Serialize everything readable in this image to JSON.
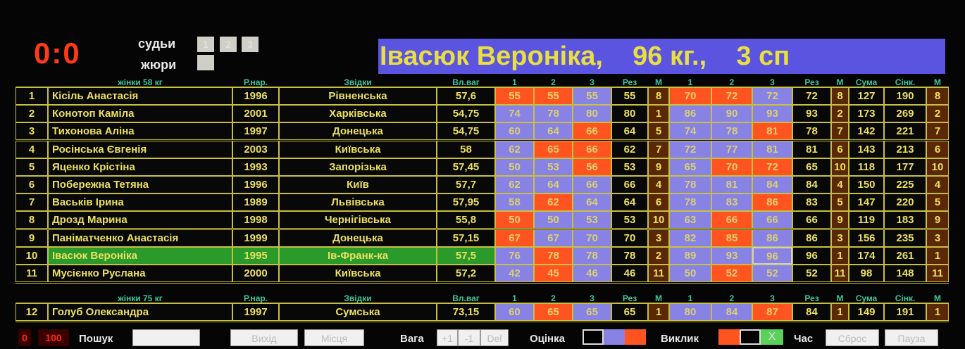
{
  "score": "0:0",
  "judges_label": "судьи",
  "judges": [
    "1",
    "2",
    "3"
  ],
  "jury_label": "жюри",
  "banner": "Івасюк Вероніка,    96 кг.,    3 сп",
  "headers": [
    "",
    "",
    "Р.нар.",
    "Звідки",
    "Вл.ваг",
    "1",
    "2",
    "3",
    "Рез",
    "М",
    "1",
    "2",
    "3",
    "Рез",
    "М",
    "Сума",
    "Сінк.",
    "М"
  ],
  "groups": [
    {
      "title": "жінки 58 кг",
      "athletes": [
        [
          "1",
          "Кісіль Анастасія",
          "1996",
          "Рівненська",
          "57,6",
          [
            "55",
            "F"
          ],
          [
            "55",
            "F"
          ],
          [
            "55",
            "G"
          ],
          "55",
          "8",
          [
            "70",
            "F"
          ],
          [
            "72",
            "F"
          ],
          [
            "72",
            "G"
          ],
          "72",
          "8",
          "127",
          "190",
          "8"
        ],
        [
          "2",
          "Конотоп Каміла",
          "2001",
          "Харківська",
          "54,75",
          [
            "74",
            "G"
          ],
          [
            "78",
            "G"
          ],
          [
            "80",
            "G"
          ],
          "80",
          "1",
          [
            "86",
            "G"
          ],
          [
            "90",
            "G"
          ],
          [
            "93",
            "G"
          ],
          "93",
          "2",
          "173",
          "269",
          "2"
        ],
        [
          "3",
          "Тихонова Аліна",
          "1997",
          "Донецька",
          "54,75",
          [
            "60",
            "G"
          ],
          [
            "64",
            "G"
          ],
          [
            "66",
            "F"
          ],
          "64",
          "5",
          [
            "74",
            "G"
          ],
          [
            "78",
            "G"
          ],
          [
            "81",
            "F"
          ],
          "78",
          "7",
          "142",
          "221",
          "7"
        ],
        [
          "4",
          "Росінська Євгенія",
          "2003",
          "Київська",
          "58",
          [
            "62",
            "G"
          ],
          [
            "65",
            "F"
          ],
          [
            "66",
            "F"
          ],
          "62",
          "7",
          [
            "72",
            "G"
          ],
          [
            "77",
            "G"
          ],
          [
            "81",
            "G"
          ],
          "81",
          "6",
          "143",
          "213",
          "6"
        ],
        [
          "5",
          "Яценко Крістіна",
          "1993",
          "Запорізька",
          "57,45",
          [
            "50",
            "G"
          ],
          [
            "53",
            "G"
          ],
          [
            "56",
            "F"
          ],
          "53",
          "9",
          [
            "65",
            "G"
          ],
          [
            "70",
            "F"
          ],
          [
            "72",
            "F"
          ],
          "65",
          "10",
          "118",
          "177",
          "10"
        ],
        [
          "6",
          "Побережна Тетяна",
          "1996",
          "Київ",
          "57,7",
          [
            "62",
            "G"
          ],
          [
            "64",
            "G"
          ],
          [
            "66",
            "G"
          ],
          "66",
          "4",
          [
            "78",
            "G"
          ],
          [
            "81",
            "G"
          ],
          [
            "84",
            "G"
          ],
          "84",
          "4",
          "150",
          "225",
          "4"
        ],
        [
          "7",
          "Васьків Ірина",
          "1989",
          "Львівська",
          "57,95",
          [
            "58",
            "G"
          ],
          [
            "62",
            "F"
          ],
          [
            "64",
            "G"
          ],
          "64",
          "6",
          [
            "78",
            "G"
          ],
          [
            "83",
            "G"
          ],
          [
            "86",
            "F"
          ],
          "83",
          "5",
          "147",
          "220",
          "5"
        ],
        [
          "8",
          "Дрозд Марина",
          "1998",
          "Чернігівська",
          "55,8",
          [
            "50",
            "F"
          ],
          [
            "50",
            "G"
          ],
          [
            "53",
            "G"
          ],
          "53",
          "10",
          [
            "63",
            "G"
          ],
          [
            "66",
            "F"
          ],
          [
            "66",
            "G"
          ],
          "66",
          "9",
          "119",
          "183",
          "9"
        ],
        [
          "9",
          "Паніматченко Анастасія",
          "1999",
          "Донецька",
          "57,15",
          [
            "67",
            "F"
          ],
          [
            "67",
            "G"
          ],
          [
            "70",
            "G"
          ],
          "70",
          "3",
          [
            "82",
            "G"
          ],
          [
            "85",
            "F"
          ],
          [
            "86",
            "G"
          ],
          "86",
          "3",
          "156",
          "235",
          "3"
        ],
        [
          "10",
          "Івасюк Вероніка",
          "1995",
          "Ів-Франк-ка",
          "57,5",
          [
            "76",
            "G"
          ],
          [
            "78",
            "F"
          ],
          [
            "78",
            "G"
          ],
          "78",
          "2",
          [
            "89",
            "G"
          ],
          [
            "93",
            "G"
          ],
          [
            "96",
            "cur"
          ],
          "96",
          "1",
          "174",
          "261",
          "1"
        ],
        [
          "11",
          "Мусієнко Руслана",
          "2000",
          "Київська",
          "57,2",
          [
            "42",
            "G"
          ],
          [
            "45",
            "F"
          ],
          [
            "46",
            "G"
          ],
          "46",
          "11",
          [
            "50",
            "G"
          ],
          [
            "52",
            "F"
          ],
          [
            "52",
            "G"
          ],
          "52",
          "11",
          "98",
          "148",
          "11"
        ]
      ]
    },
    {
      "title": "жінки 75 кг",
      "athletes": [
        [
          "12",
          "Голуб Олександра",
          "1997",
          "Сумська",
          "73,15",
          [
            "60",
            "G"
          ],
          [
            "65",
            "F"
          ],
          [
            "65",
            "G"
          ],
          "65",
          "1",
          [
            "80",
            "G"
          ],
          [
            "84",
            "G"
          ],
          [
            "87",
            "F"
          ],
          "84",
          "1",
          "149",
          "191",
          "1"
        ]
      ]
    }
  ],
  "selected_row": "10",
  "colors": {
    "good": "#8882e4",
    "fail": "#ff5420",
    "selected": "#2a9a2a",
    "text": "#ece060",
    "header": "#3cc8a0"
  },
  "toolbar": {
    "timer_a": "0",
    "timer_b": "100",
    "search_label": "Пошук",
    "search_value": "",
    "exit": "Вихід",
    "places": "Місця",
    "weight_label": "Вага",
    "plus1": "+1",
    "minus1": "-1",
    "del": "Del",
    "grade_label": "Оцінка",
    "call_label": "Виклик",
    "call_x": "X",
    "time_label": "Час",
    "reset": "Сброс",
    "pause": "Пауза"
  }
}
